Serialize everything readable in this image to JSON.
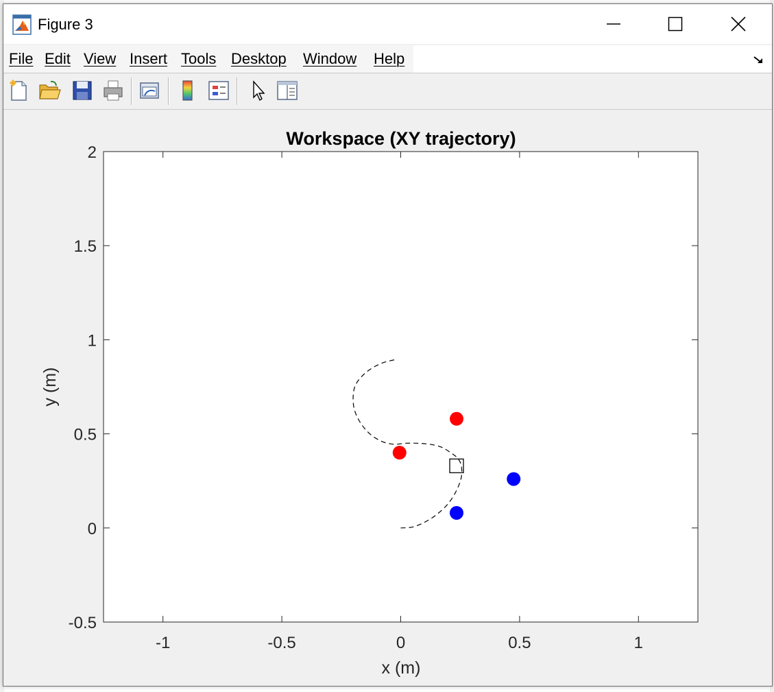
{
  "window": {
    "title": "Figure 3",
    "controls": {
      "minimize": "minimize",
      "maximize": "maximize",
      "close": "close"
    }
  },
  "menu": {
    "items": [
      "File",
      "Edit",
      "View",
      "Insert",
      "Tools",
      "Desktop",
      "Window",
      "Help"
    ]
  },
  "toolbar": {
    "buttons": [
      "new-figure-icon",
      "open-file-icon",
      "save-icon",
      "print-icon",
      "link-plot-icon",
      "colorbar-icon",
      "legend-icon",
      "edit-plot-icon",
      "property-editor-icon"
    ]
  },
  "colors": {
    "marker_red": "#ff0000",
    "marker_blue": "#0000ff",
    "trajectory": "#000000"
  },
  "chart_data": {
    "type": "scatter",
    "title": "Workspace (XY trajectory)",
    "xlabel": "x (m)",
    "ylabel": "y (m)",
    "xlim": [
      -1.25,
      1.25
    ],
    "ylim": [
      -0.5,
      2
    ],
    "xticks": [
      -1,
      -0.5,
      0,
      0.5,
      1
    ],
    "yticks": [
      -0.5,
      0,
      0.5,
      1,
      1.5,
      2
    ],
    "xtick_labels": [
      "-1",
      "-0.5",
      "0",
      "0.5",
      "1"
    ],
    "ytick_labels": [
      "-0.5",
      "0",
      "0.5",
      "1",
      "1.5",
      "2"
    ],
    "grid": false,
    "series": [
      {
        "style": "dashed-line",
        "color": "#000000",
        "x": [
          0.0,
          0.05,
          0.1,
          0.15,
          0.2,
          0.235,
          0.255,
          0.255,
          0.24,
          0.21,
          0.17,
          0.12,
          0.07,
          0.02,
          -0.03,
          -0.08,
          -0.13,
          -0.17,
          -0.195,
          -0.2,
          -0.19,
          -0.16,
          -0.12,
          -0.07,
          -0.02
        ],
        "y": [
          0.0,
          0.005,
          0.03,
          0.07,
          0.13,
          0.2,
          0.27,
          0.33,
          0.37,
          0.4,
          0.43,
          0.445,
          0.45,
          0.45,
          0.445,
          0.46,
          0.5,
          0.56,
          0.63,
          0.7,
          0.76,
          0.81,
          0.85,
          0.88,
          0.895
        ]
      },
      {
        "style": "square-marker",
        "color": "#000000",
        "x": [
          0.235
        ],
        "y": [
          0.33
        ]
      },
      {
        "style": "filled-circle",
        "color": "#ff0000",
        "x": [
          -0.005,
          0.235
        ],
        "y": [
          0.4,
          0.58
        ]
      },
      {
        "style": "filled-circle",
        "color": "#0000ff",
        "x": [
          0.235,
          0.475
        ],
        "y": [
          0.08,
          0.26
        ]
      }
    ]
  }
}
